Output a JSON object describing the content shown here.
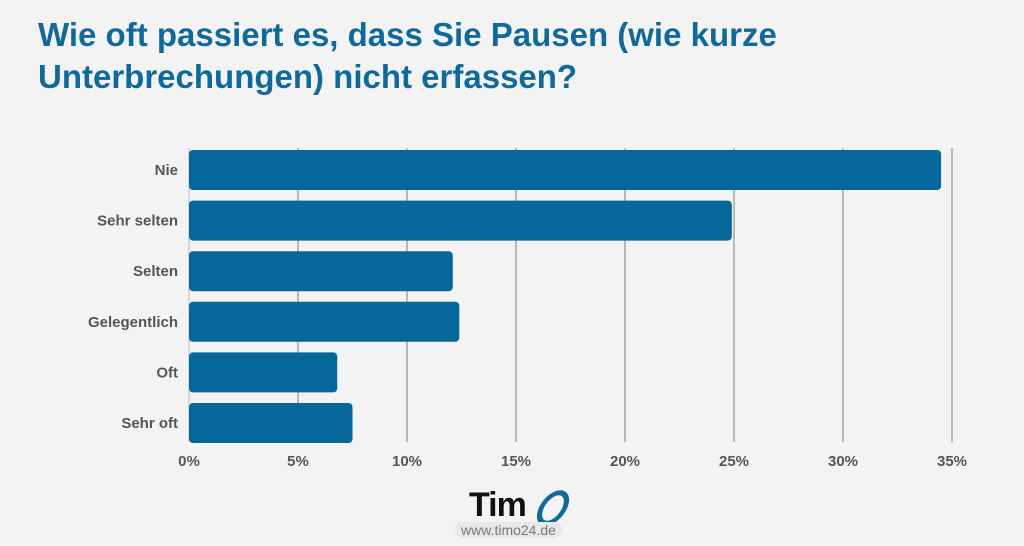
{
  "title": "Wie oft passiert es, dass Sie Pausen (wie kurze Unterbrechungen) nicht erfassen?",
  "logo": {
    "text": "Tim",
    "url": "www.timo24.de"
  },
  "colors": {
    "bar": "#06679a",
    "title": "#0f6a9b",
    "grid": "#9a9a9a",
    "background": "#f3f3f3"
  },
  "chart_data": {
    "type": "bar",
    "orientation": "horizontal",
    "categories": [
      "Nie",
      "Sehr selten",
      "Selten",
      "Gelegentlich",
      "Oft",
      "Sehr oft"
    ],
    "values": [
      34.5,
      24.9,
      12.1,
      12.4,
      6.8,
      7.5
    ],
    "unit": "%",
    "xlim": [
      0,
      35
    ],
    "xticks": [
      "0%",
      "5%",
      "10%",
      "15%",
      "20%",
      "25%",
      "30%",
      "35%"
    ],
    "grid": "vertical",
    "title": "Wie oft passiert es, dass Sie Pausen (wie kurze Unterbrechungen) nicht erfassen?"
  }
}
